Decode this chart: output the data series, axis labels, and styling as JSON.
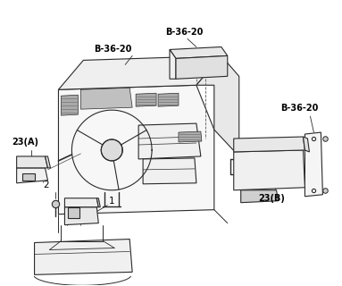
{
  "background_color": "#ffffff",
  "line_color": "#2a2a2a",
  "text_color": "#000000",
  "labels": {
    "B3620_left": "B-36-20",
    "B3620_center": "B-36-20",
    "B3620_right": "B-36-20",
    "label_23A": "23(A)",
    "label_23B": "23(B)",
    "label_1": "1",
    "label_2": "2"
  },
  "figsize": [
    3.83,
    3.2
  ],
  "dpi": 100
}
